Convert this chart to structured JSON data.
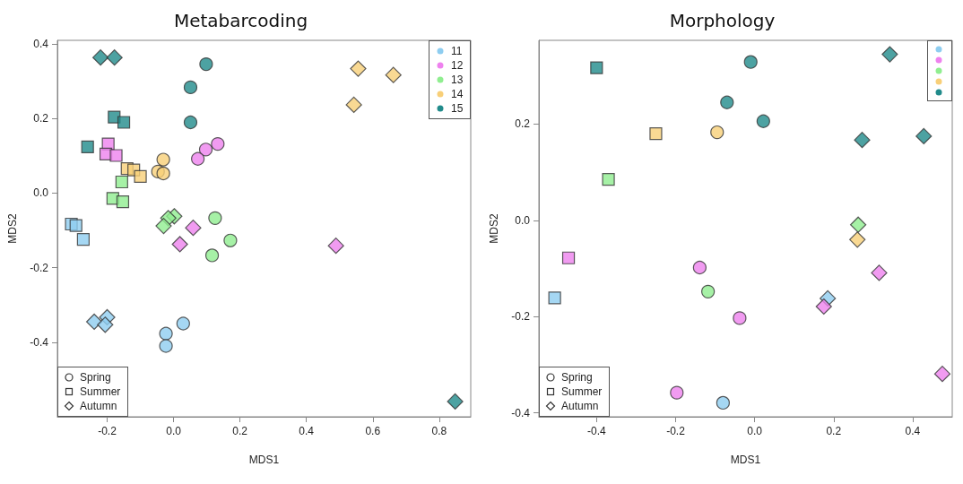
{
  "chart_data": [
    {
      "type": "scatter",
      "title": "Metabarcoding",
      "xlabel": "MDS1",
      "ylabel": "MDS2",
      "xlim": [
        -0.35,
        0.895
      ],
      "ylim": [
        -0.6,
        0.41
      ],
      "xticks": [
        -0.2,
        {
          "value": 0,
          "label": "0.0"
        },
        0.2,
        0.4,
        0.6,
        0.8
      ],
      "yticks": [
        -0.4,
        -0.2,
        {
          "value": 0,
          "label": "0.0"
        },
        0.2,
        0.4
      ],
      "annotations": [
        "11",
        "12",
        "13",
        "14",
        "15",
        "Spring",
        "Summer",
        "Autumn"
      ],
      "series": [
        {
          "color": "#8ecdf0",
          "marker": "circle",
          "x": [
            0.029,
            -0.023,
            -0.023
          ],
          "values": [
            -0.35,
            -0.377,
            -0.41
          ]
        },
        {
          "color": "#8ecdf0",
          "marker": "square",
          "x": [
            -0.308,
            -0.294,
            -0.272
          ],
          "values": [
            -0.083,
            -0.087,
            -0.124
          ]
        },
        {
          "color": "#8ecdf0",
          "marker": "diamond",
          "x": [
            -0.239,
            -0.2,
            -0.206
          ],
          "values": [
            -0.345,
            -0.333,
            -0.353
          ]
        },
        {
          "color": "#ee82ee",
          "marker": "circle",
          "x": [
            0.133,
            0.097,
            0.073
          ],
          "values": [
            0.132,
            0.117,
            0.092
          ]
        },
        {
          "color": "#ee82ee",
          "marker": "square",
          "x": [
            -0.197,
            -0.204,
            -0.173
          ],
          "values": [
            0.132,
            0.105,
            0.101
          ]
        },
        {
          "color": "#ee82ee",
          "marker": "diamond",
          "x": [
            0.059,
            0.019,
            0.489
          ],
          "values": [
            -0.093,
            -0.137,
            -0.141
          ]
        },
        {
          "color": "#90ee90",
          "marker": "circle",
          "x": [
            0.125,
            0.171,
            0.116
          ],
          "values": [
            -0.067,
            -0.127,
            -0.167
          ]
        },
        {
          "color": "#90ee90",
          "marker": "square",
          "x": [
            -0.156,
            -0.183,
            -0.153
          ],
          "values": [
            0.03,
            -0.014,
            -0.023
          ]
        },
        {
          "color": "#90ee90",
          "marker": "diamond",
          "x": [
            0.002,
            -0.016,
            -0.03
          ],
          "values": [
            -0.062,
            -0.067,
            -0.088
          ]
        },
        {
          "color": "#f8cf78",
          "marker": "circle",
          "x": [
            -0.031,
            -0.047,
            -0.031
          ],
          "values": [
            0.09,
            0.058,
            0.053
          ]
        },
        {
          "color": "#f8cf78",
          "marker": "square",
          "x": [
            -0.14,
            -0.12,
            -0.1
          ],
          "values": [
            0.066,
            0.062,
            0.045
          ]
        },
        {
          "color": "#f8cf78",
          "marker": "diamond",
          "x": [
            0.556,
            0.662,
            0.543
          ],
          "values": [
            0.334,
            0.317,
            0.237
          ]
        },
        {
          "color": "#218b8b",
          "marker": "circle",
          "x": [
            0.098,
            0.051,
            0.051
          ],
          "values": [
            0.346,
            0.284,
            0.19
          ]
        },
        {
          "color": "#218b8b",
          "marker": "square",
          "x": [
            -0.179,
            -0.15,
            -0.259
          ],
          "values": [
            0.204,
            0.19,
            0.124
          ]
        },
        {
          "color": "#218b8b",
          "marker": "diamond",
          "x": [
            -0.22,
            -0.178,
            0.848
          ],
          "values": [
            0.364,
            0.364,
            -0.559
          ]
        }
      ]
    },
    {
      "type": "scatter",
      "title": "Morphology",
      "xlabel": "MDS1",
      "ylabel": "MDS2",
      "xlim": [
        -0.546,
        0.5
      ],
      "ylim": [
        -0.408,
        0.374
      ],
      "xticks": [
        -0.4,
        -0.2,
        {
          "value": 0,
          "label": "0.0"
        },
        0.2,
        0.4
      ],
      "yticks": [
        -0.4,
        -0.2,
        {
          "value": 0,
          "label": "0.0"
        },
        0.2
      ],
      "annotations": [
        "Spring",
        "Summer",
        "Autumn"
      ],
      "series": [
        {
          "color": "#8ecdf0",
          "marker": "circle",
          "x": [
            -0.08
          ],
          "values": [
            -0.379
          ]
        },
        {
          "color": "#8ecdf0",
          "marker": "square",
          "x": [
            -0.506
          ],
          "values": [
            -0.161
          ]
        },
        {
          "color": "#8ecdf0",
          "marker": "diamond",
          "x": [
            0.185
          ],
          "values": [
            -0.162
          ]
        },
        {
          "color": "#ee82ee",
          "marker": "circle",
          "x": [
            -0.139,
            -0.197,
            -0.038
          ],
          "values": [
            -0.098,
            -0.358,
            -0.203
          ]
        },
        {
          "color": "#ee82ee",
          "marker": "square",
          "x": [
            -0.471
          ],
          "values": [
            -0.078
          ]
        },
        {
          "color": "#ee82ee",
          "marker": "diamond",
          "x": [
            0.315,
            0.175,
            0.475
          ],
          "values": [
            -0.109,
            -0.179,
            -0.319
          ]
        },
        {
          "color": "#90ee90",
          "marker": "circle",
          "x": [
            -0.118
          ],
          "values": [
            -0.148
          ]
        },
        {
          "color": "#90ee90",
          "marker": "square",
          "x": [
            -0.37
          ],
          "values": [
            0.085
          ]
        },
        {
          "color": "#90ee90",
          "marker": "diamond",
          "x": [
            0.262
          ],
          "values": [
            -0.009
          ]
        },
        {
          "color": "#f8cf78",
          "marker": "circle",
          "x": [
            -0.095
          ],
          "values": [
            0.183
          ]
        },
        {
          "color": "#f8cf78",
          "marker": "square",
          "x": [
            -0.25
          ],
          "values": [
            0.18
          ]
        },
        {
          "color": "#f8cf78",
          "marker": "diamond",
          "x": [
            0.26
          ],
          "values": [
            -0.04
          ]
        },
        {
          "color": "#218b8b",
          "marker": "circle",
          "x": [
            -0.07,
            -0.01,
            0.022
          ],
          "values": [
            0.245,
            0.329,
            0.206
          ]
        },
        {
          "color": "#218b8b",
          "marker": "square",
          "x": [
            -0.4
          ],
          "values": [
            0.317
          ]
        },
        {
          "color": "#218b8b",
          "marker": "diamond",
          "x": [
            0.342,
            0.272,
            0.428
          ],
          "values": [
            0.345,
            0.167,
            0.175
          ]
        }
      ]
    }
  ]
}
